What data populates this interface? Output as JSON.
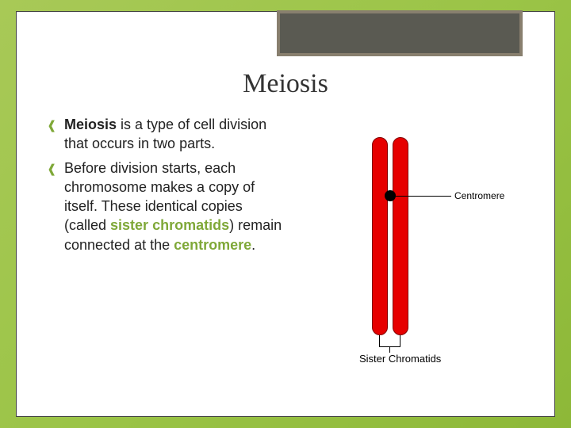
{
  "title": "Meiosis",
  "bullets": {
    "b1": {
      "bold": "Meiosis",
      "rest": " is a type of cell division that occurs in two parts."
    },
    "b2": {
      "pre": "Before division starts, each chromosome makes a copy of itself. These identical copies (called ",
      "term1": "sister chromatids",
      "mid": ") remain connected at the ",
      "term2": "centromere",
      "post": "."
    }
  },
  "diagram": {
    "type": "infographic",
    "chromatid_color": "#e60000",
    "chromatid_border": "#800000",
    "centromere_label": "Centromere",
    "sister_label": "Sister Chromatids",
    "centromere_dot_color": "#000000",
    "background": "#ffffff",
    "label_fontsize": 12
  },
  "theme": {
    "bg_gradient_start": "#a8c957",
    "bg_gradient_end": "#8db838",
    "header_box_fill": "#5a5a52",
    "header_box_border": "#887f6e",
    "accent_green": "#7fa838",
    "title_fontsize": 34,
    "body_fontsize": 18
  }
}
